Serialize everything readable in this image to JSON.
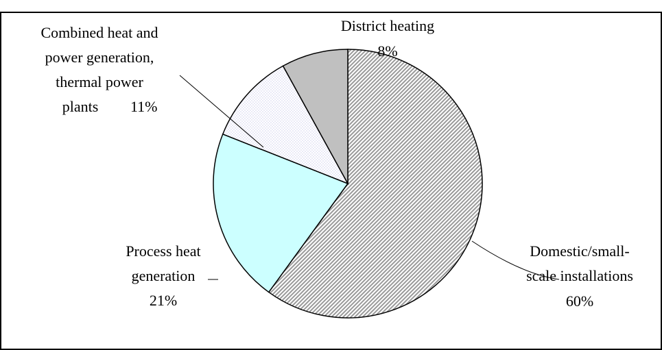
{
  "chart_data": {
    "type": "pie",
    "categories": [
      "Domestic/small-\nscale installations",
      "Process heat\ngeneration",
      "Combined heat and\npower generation,\nthermal power\nplants",
      "District heating"
    ],
    "values": [
      60,
      21,
      11,
      8
    ],
    "value_labels": [
      "60%",
      "21%",
      "11%",
      "8%"
    ],
    "colors": [
      "#9a9a9a",
      "#ccffff",
      "#dcdcf2",
      "#c0c0c0"
    ],
    "patterns": [
      "hatch",
      "solid",
      "dots",
      "solid"
    ],
    "start_angle": 0,
    "direction": "clockwise"
  }
}
